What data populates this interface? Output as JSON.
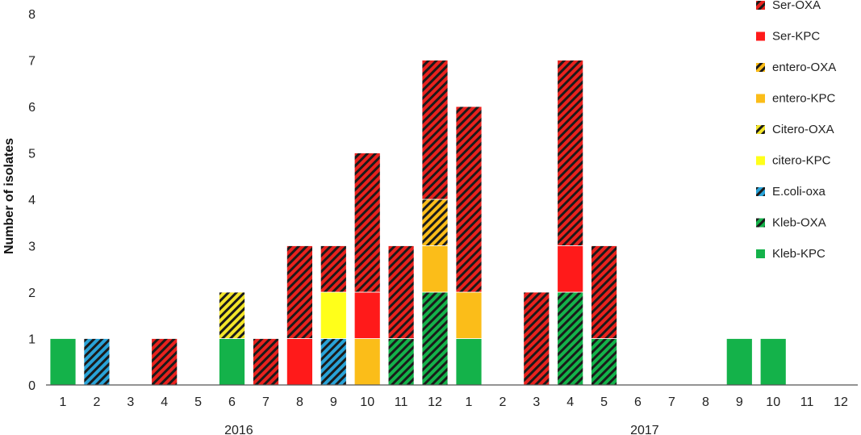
{
  "chart_data": {
    "type": "bar",
    "stacked": true,
    "ylabel": "Number of isolates",
    "ylim": [
      0,
      8
    ],
    "yticks": [
      0,
      1,
      2,
      3,
      4,
      5,
      6,
      7,
      8
    ],
    "categories": [
      "1",
      "2",
      "3",
      "4",
      "5",
      "6",
      "7",
      "8",
      "9",
      "10",
      "11",
      "12",
      "1",
      "2",
      "3",
      "4",
      "5",
      "6",
      "7",
      "8",
      "9",
      "10",
      "11",
      "12"
    ],
    "year_labels": [
      "2016",
      "2017"
    ],
    "legend_position": "right",
    "series": [
      {
        "name": "Kleb-KPC",
        "color": "#14b24a",
        "pattern": "solid",
        "values": [
          1,
          0,
          0,
          0,
          0,
          1,
          0,
          0,
          0,
          0,
          0,
          0,
          1,
          0,
          0,
          0,
          0,
          0,
          0,
          0,
          1,
          1,
          0,
          0
        ]
      },
      {
        "name": "Kleb-OXA",
        "color": "#14b24a",
        "pattern": "hatched",
        "values": [
          0,
          0,
          0,
          0,
          0,
          0,
          0,
          0,
          0,
          0,
          1,
          2,
          0,
          0,
          0,
          2,
          1,
          0,
          0,
          0,
          0,
          0,
          0,
          0
        ]
      },
      {
        "name": "E.coli-oxa",
        "color": "#29a3d8",
        "pattern": "hatched",
        "values": [
          0,
          1,
          0,
          0,
          0,
          0,
          0,
          0,
          1,
          0,
          0,
          0,
          0,
          0,
          0,
          0,
          0,
          0,
          0,
          0,
          0,
          0,
          0,
          0
        ]
      },
      {
        "name": "citero-KPC",
        "color": "#ffff1a",
        "pattern": "solid",
        "values": [
          0,
          0,
          0,
          0,
          0,
          0,
          0,
          0,
          1,
          0,
          0,
          0,
          0,
          0,
          0,
          0,
          0,
          0,
          0,
          0,
          0,
          0,
          0,
          0
        ]
      },
      {
        "name": "Citero-OXA",
        "color": "#f3e52a",
        "pattern": "hatched",
        "values": [
          0,
          0,
          0,
          0,
          0,
          1,
          0,
          0,
          0,
          0,
          0,
          0,
          0,
          0,
          0,
          0,
          0,
          0,
          0,
          0,
          0,
          0,
          0,
          0
        ]
      },
      {
        "name": "entero-KPC",
        "color": "#fbbd19",
        "pattern": "solid",
        "values": [
          0,
          0,
          0,
          0,
          0,
          0,
          0,
          0,
          0,
          1,
          0,
          1,
          1,
          0,
          0,
          0,
          0,
          0,
          0,
          0,
          0,
          0,
          0,
          0
        ]
      },
      {
        "name": "entero-OXA",
        "color": "#fbbd19",
        "pattern": "hatched",
        "values": [
          0,
          0,
          0,
          0,
          0,
          0,
          0,
          0,
          0,
          0,
          0,
          1,
          0,
          0,
          0,
          0,
          0,
          0,
          0,
          0,
          0,
          0,
          0,
          0
        ]
      },
      {
        "name": "Ser-KPC",
        "color": "#ff1a1a",
        "pattern": "solid",
        "values": [
          0,
          0,
          0,
          0,
          0,
          0,
          0,
          1,
          0,
          1,
          0,
          0,
          0,
          0,
          0,
          1,
          0,
          0,
          0,
          0,
          0,
          0,
          0,
          0
        ]
      },
      {
        "name": "Ser-OXA",
        "color": "#e8221e",
        "pattern": "hatched",
        "values": [
          0,
          0,
          0,
          1,
          0,
          0,
          1,
          2,
          1,
          3,
          2,
          3,
          4,
          0,
          2,
          4,
          2,
          0,
          0,
          0,
          0,
          0,
          0,
          0
        ]
      }
    ],
    "legend_order": [
      "Ser-OXA",
      "Ser-KPC",
      "entero-OXA",
      "entero-KPC",
      "Citero-OXA",
      "citero-KPC",
      "E.coli-oxa",
      "Kleb-OXA",
      "Kleb-KPC"
    ]
  }
}
